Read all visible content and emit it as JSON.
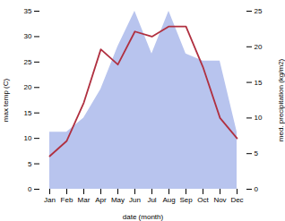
{
  "chart_data": {
    "type": "line",
    "categories": [
      "Jan",
      "Feb",
      "Mar",
      "Apr",
      "May",
      "Jun",
      "Jul",
      "Aug",
      "Sep",
      "Oct",
      "Nov",
      "Dec"
    ],
    "series": [
      {
        "type": "area",
        "axis": "y2",
        "color": "#b8c4ee",
        "values": [
          8.0,
          8.0,
          10.0,
          14.0,
          20.0,
          25.0,
          19.0,
          25.0,
          19.0,
          18.0,
          18.0,
          8.0
        ]
      },
      {
        "type": "line",
        "color": "#b03040",
        "values": [
          6.5,
          9.5,
          17.0,
          27.5,
          24.5,
          31.0,
          30.0,
          32.0,
          32.0,
          24.0,
          14.0,
          10.0
        ]
      }
    ],
    "xlabel": "date (month)",
    "ylabel": "max temp (C)",
    "y2label": "med. precipitation (kg/m2)",
    "ylim": [
      0,
      35
    ],
    "yticks": [
      0,
      5,
      10,
      15,
      20,
      25,
      30,
      35
    ],
    "y2lim": [
      0,
      25
    ],
    "y2ticks": [
      0,
      5,
      10,
      15,
      20,
      25
    ],
    "grid": false
  }
}
